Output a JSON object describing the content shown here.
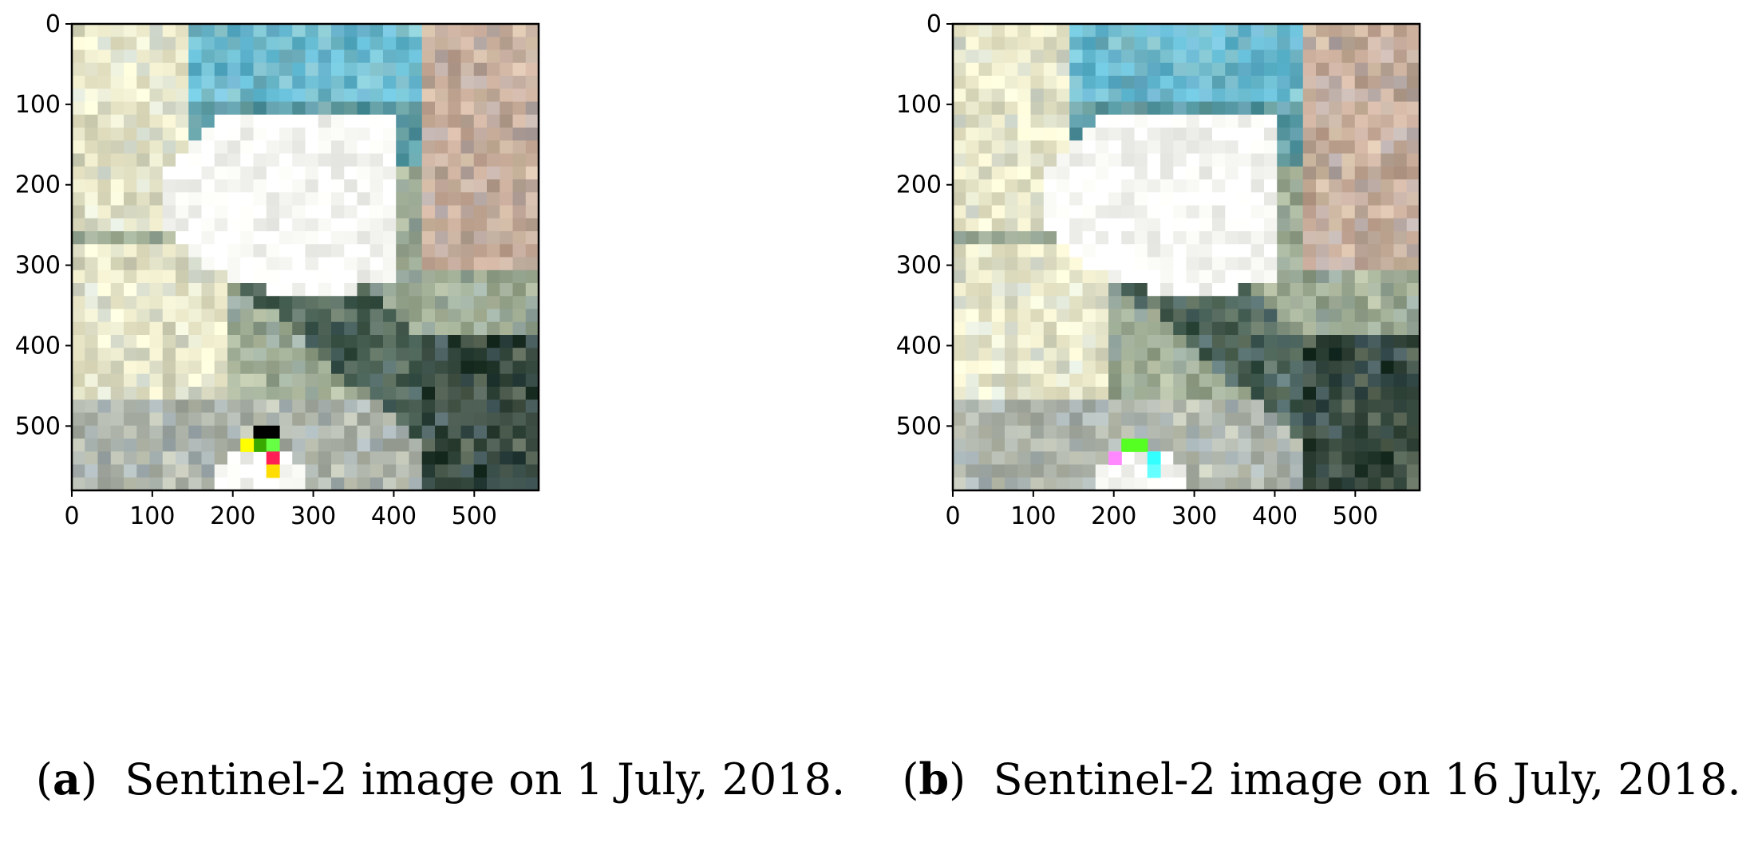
{
  "axes": {
    "y_ticks": [
      "0",
      "100",
      "200",
      "300",
      "400",
      "500"
    ],
    "x_ticks": [
      "0",
      "100",
      "200",
      "300",
      "400",
      "500"
    ]
  },
  "panels": [
    {
      "letter": "a",
      "caption": "Sentinel-2 image on 1 July, 2018.",
      "image_description": "Pixelated multispectral satellite tile; large white cloud region upper-left-center, cyan/blue urban texture top-center, pinkish-gray blocky area right, dark green vegetation diagonal band center-bottom, saturated artifact pixels (black, yellow, red, green) near bottom center."
    },
    {
      "letter": "b",
      "caption": "Sentinel-2 image on 16 July, 2018.",
      "image_description": "Same scene two weeks later; similar white region, cyan urban area top, pinkish-gray right area, dark green diagonal band; a few saturated pixels (magenta, green, cyan) near bottom center."
    }
  ]
}
